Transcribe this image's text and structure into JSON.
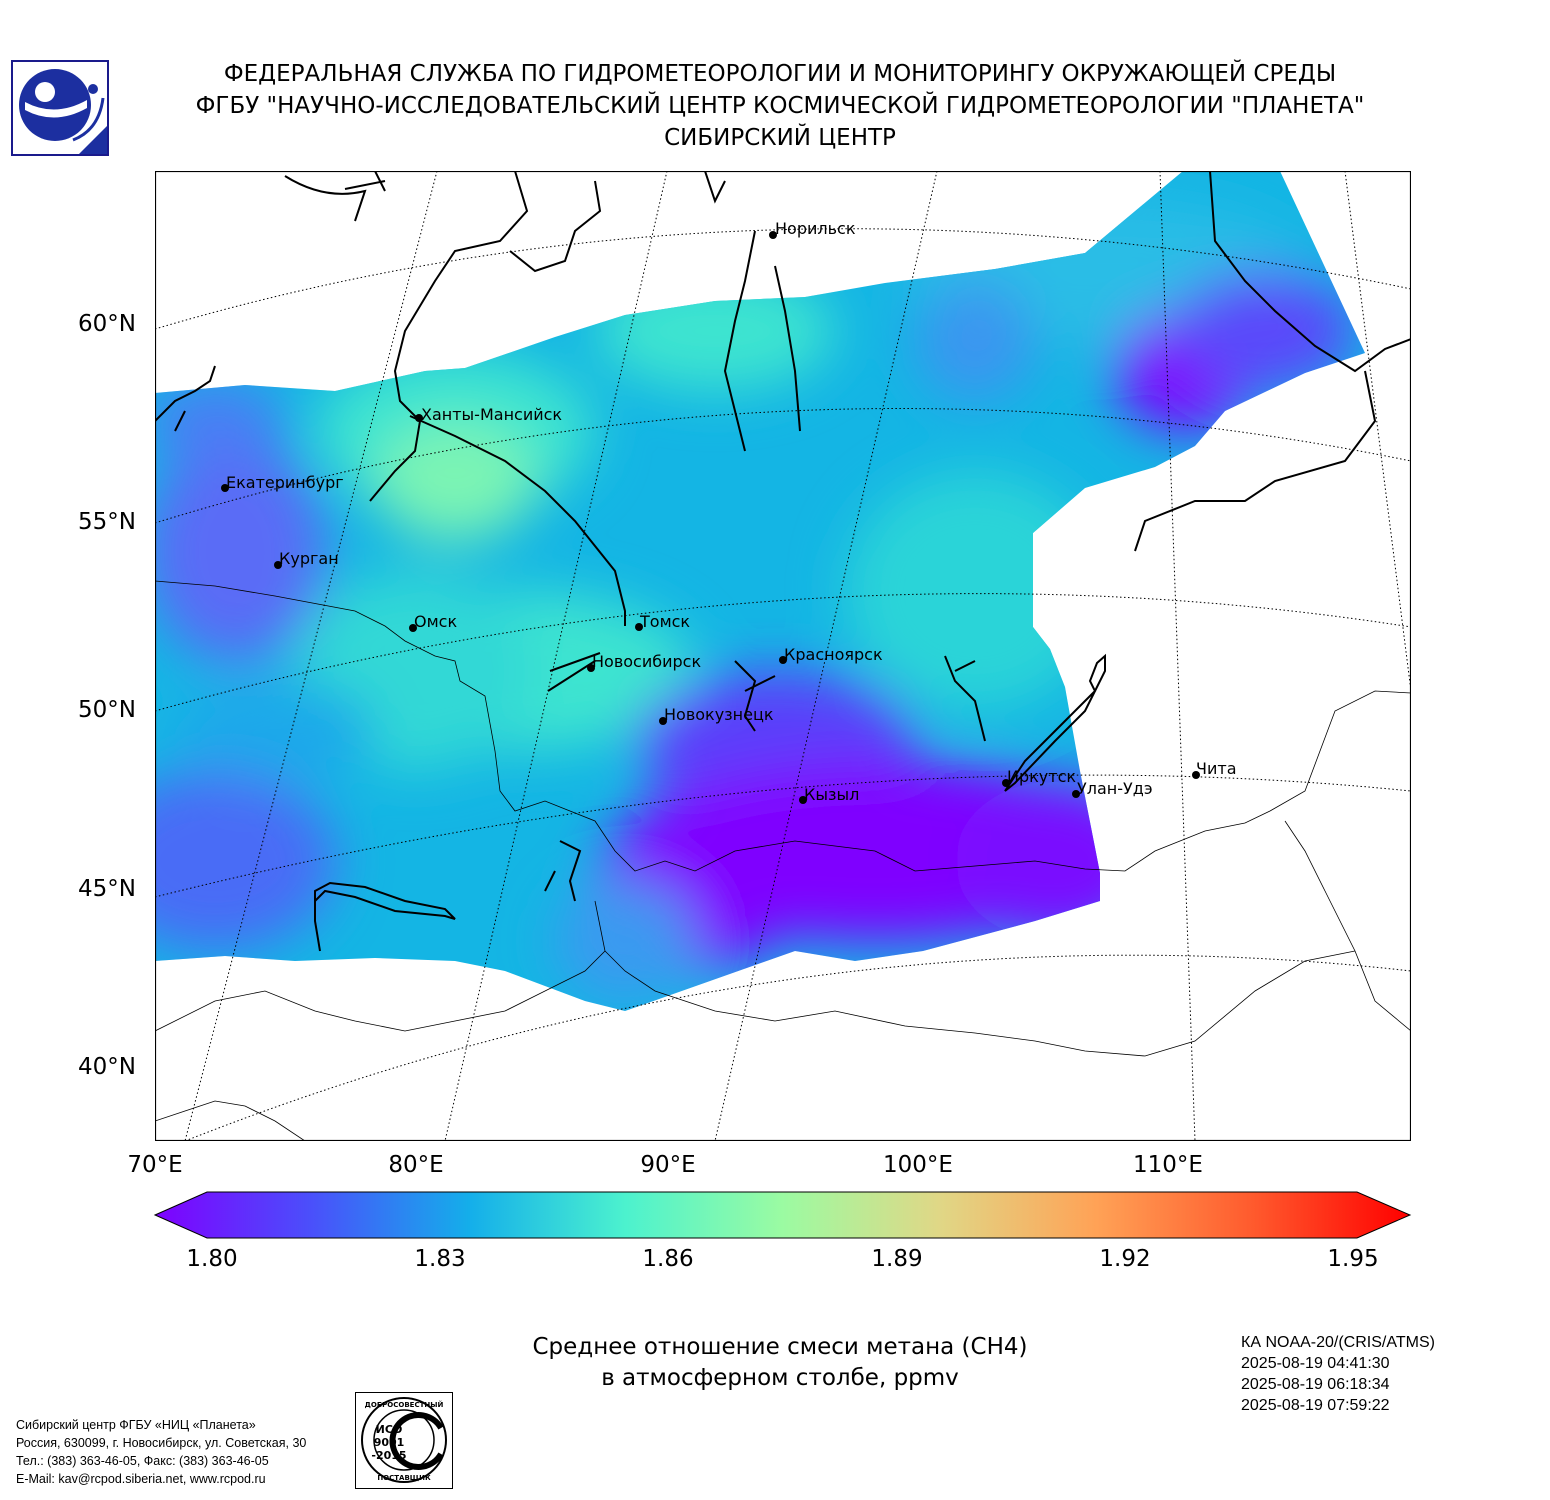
{
  "header": {
    "line1": "ФЕДЕРАЛЬНАЯ СЛУЖБА ПО ГИДРОМЕТЕОРОЛОГИИ И МОНИТОРИНГУ ОКРУЖАЮЩЕЙ СРЕДЫ",
    "line2": "ФГБУ \"НАУЧНО-ИССЛЕДОВАТЕЛЬСКИЙ ЦЕНТР КОСМИЧЕСКОЙ ГИДРОМЕТЕОРОЛОГИИ \"ПЛАНЕТА\"",
    "line3": "СИБИРСКИЙ ЦЕНТР"
  },
  "map": {
    "lat_labels": [
      "60°N",
      "55°N",
      "50°N",
      "45°N",
      "40°N"
    ],
    "lon_labels": [
      "70°E",
      "80°E",
      "90°E",
      "100°E",
      "110°E"
    ],
    "cities": [
      {
        "name": "Норильск"
      },
      {
        "name": "Ханты-Мансийск"
      },
      {
        "name": "Екатеринбург"
      },
      {
        "name": "Курган"
      },
      {
        "name": "Омск"
      },
      {
        "name": "Томск"
      },
      {
        "name": "Новосибирск"
      },
      {
        "name": "Красноярск"
      },
      {
        "name": "Новокузнецк"
      },
      {
        "name": "Иркутск"
      },
      {
        "name": "Улан-Удэ"
      },
      {
        "name": "Чита"
      },
      {
        "name": "Кызыл"
      }
    ]
  },
  "colorbar": {
    "ticks": [
      "1.80",
      "1.83",
      "1.86",
      "1.89",
      "1.92",
      "1.95"
    ],
    "colors": [
      "#7f00ff",
      "#4a50fb",
      "#14aeea",
      "#4cf2ce",
      "#9bfba2",
      "#e0d786",
      "#ffa256",
      "#ff5a2d",
      "#ff0000"
    ]
  },
  "caption": {
    "line1": "Среднее отношение смеси метана (CH4)",
    "line2": "в атмосферном столбе, ppmv"
  },
  "satellite": {
    "name": "КА NOAA-20/(CRIS/ATMS)",
    "times": [
      "2025-08-19 04:41:30",
      "2025-08-19 06:18:34",
      "2025-08-19 07:59:22"
    ]
  },
  "contact": {
    "line1": "Сибирский центр ФГБУ «НИЦ «Планета»",
    "line2": "Россия, 630099, г. Новосибирск, ул. Советская, 30",
    "line3": "Тел.: (383) 363-46-05, Факс: (383) 363-46-05",
    "line4": "E-Mail: kav@rcpod.siberia.net, www.rcpod.ru"
  },
  "iso": {
    "top": "ДОБРОСОВЕСТНЫЙ",
    "mid1": "ИСО",
    "mid2": "9001",
    "mid3": "-2015",
    "bottom": "ПОСТАВЩИК"
  }
}
